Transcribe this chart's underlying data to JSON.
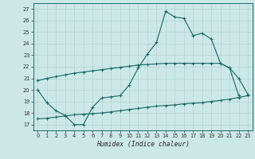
{
  "xlabel": "Humidex (Indice chaleur)",
  "bg_color": "#cce8e6",
  "line_color": "#1e6b68",
  "grid_color": "#aed4d0",
  "xlim": [
    -0.5,
    23.5
  ],
  "ylim": [
    16.5,
    27.5
  ],
  "xticks": [
    0,
    1,
    2,
    3,
    4,
    5,
    6,
    7,
    8,
    9,
    10,
    11,
    12,
    13,
    14,
    15,
    16,
    17,
    18,
    19,
    20,
    21,
    22,
    23
  ],
  "yticks": [
    17,
    18,
    19,
    20,
    21,
    22,
    23,
    24,
    25,
    26,
    27
  ],
  "line1_x": [
    0,
    1,
    2,
    3,
    4,
    5,
    6,
    7,
    8,
    9,
    10,
    11,
    12,
    13,
    14,
    15,
    16,
    17,
    18,
    19,
    20,
    21,
    22
  ],
  "line1_y": [
    20.0,
    18.9,
    18.2,
    17.8,
    17.0,
    17.0,
    18.5,
    19.3,
    19.4,
    19.5,
    20.4,
    21.9,
    23.1,
    24.1,
    26.8,
    26.3,
    26.2,
    24.7,
    24.9,
    24.4,
    22.3,
    21.9,
    19.5
  ],
  "line2_x": [
    0,
    1,
    2,
    3,
    4,
    5,
    6,
    7,
    8,
    9,
    10,
    11,
    12,
    13,
    14,
    15,
    16,
    17,
    18,
    19,
    20,
    21,
    22,
    23
  ],
  "line2_y": [
    20.8,
    21.0,
    21.15,
    21.3,
    21.45,
    21.55,
    21.65,
    21.75,
    21.85,
    21.95,
    22.05,
    22.15,
    22.2,
    22.25,
    22.3,
    22.3,
    22.3,
    22.3,
    22.3,
    22.3,
    22.3,
    21.9,
    21.0,
    19.6
  ],
  "line3_x": [
    0,
    1,
    2,
    3,
    4,
    5,
    6,
    7,
    8,
    9,
    10,
    11,
    12,
    13,
    14,
    15,
    16,
    17,
    18,
    19,
    20,
    21,
    22,
    23
  ],
  "line3_y": [
    17.5,
    17.55,
    17.65,
    17.75,
    17.85,
    17.9,
    17.95,
    18.0,
    18.1,
    18.2,
    18.3,
    18.4,
    18.5,
    18.6,
    18.65,
    18.7,
    18.8,
    18.85,
    18.9,
    19.0,
    19.1,
    19.2,
    19.35,
    19.5
  ]
}
